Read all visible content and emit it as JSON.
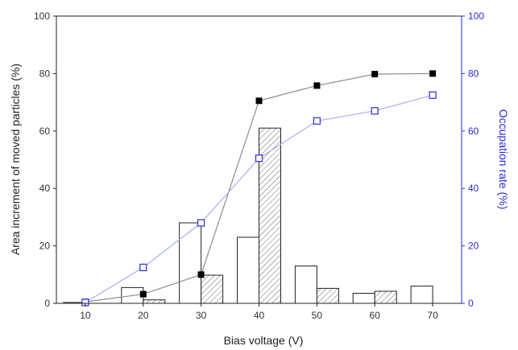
{
  "chart_data": {
    "type": "bar",
    "xlabel": "Bias voltage (V)",
    "ylabel_left": "Area increment of moved particles (%)",
    "ylabel_right": "Occupation rate  (%)",
    "x_ticks": [
      "10",
      "20",
      "30",
      "40",
      "50",
      "60",
      "70"
    ],
    "y_ticks_left": [
      "0",
      "20",
      "40",
      "60",
      "80",
      "100"
    ],
    "y_ticks_right": [
      "0",
      "20",
      "40",
      "60",
      "80",
      "100"
    ],
    "x_range": [
      5,
      75
    ],
    "ylim_left": [
      0,
      100
    ],
    "ylim_right": [
      0,
      100
    ],
    "grid": false,
    "bars": [
      {
        "style": "hollow",
        "axis": "left",
        "x": [
          10,
          20,
          30,
          40,
          50,
          60,
          70
        ],
        "values": [
          0.3,
          5.5,
          28,
          23,
          13,
          3.5,
          6
        ]
      },
      {
        "style": "hatched",
        "axis": "left",
        "x": [
          10,
          20,
          30,
          40,
          50,
          60,
          70
        ],
        "values": [
          0,
          1.2,
          9.8,
          61,
          5.2,
          4.2,
          0
        ]
      }
    ],
    "lines": [
      {
        "style": "filled-square",
        "axis": "left",
        "x": [
          10,
          20,
          30,
          40,
          50,
          60,
          70
        ],
        "values": [
          0.5,
          3.2,
          10,
          70.5,
          75.8,
          79.8,
          80
        ]
      },
      {
        "style": "open-square",
        "axis": "right",
        "x": [
          10,
          20,
          30,
          40,
          50,
          60,
          70
        ],
        "values": [
          0.3,
          12.5,
          28,
          50.5,
          63.5,
          67,
          72.5
        ]
      }
    ],
    "colors": {
      "axis_left": "#222222",
      "axis_right": "#2b2bd6",
      "filled_line": "#8c8c8c",
      "filled_marker": "#000000",
      "open_line": "#a9aef0",
      "open_marker": "#3a3ad8",
      "bar_outline": "#222222",
      "hatch": "#666666"
    }
  }
}
